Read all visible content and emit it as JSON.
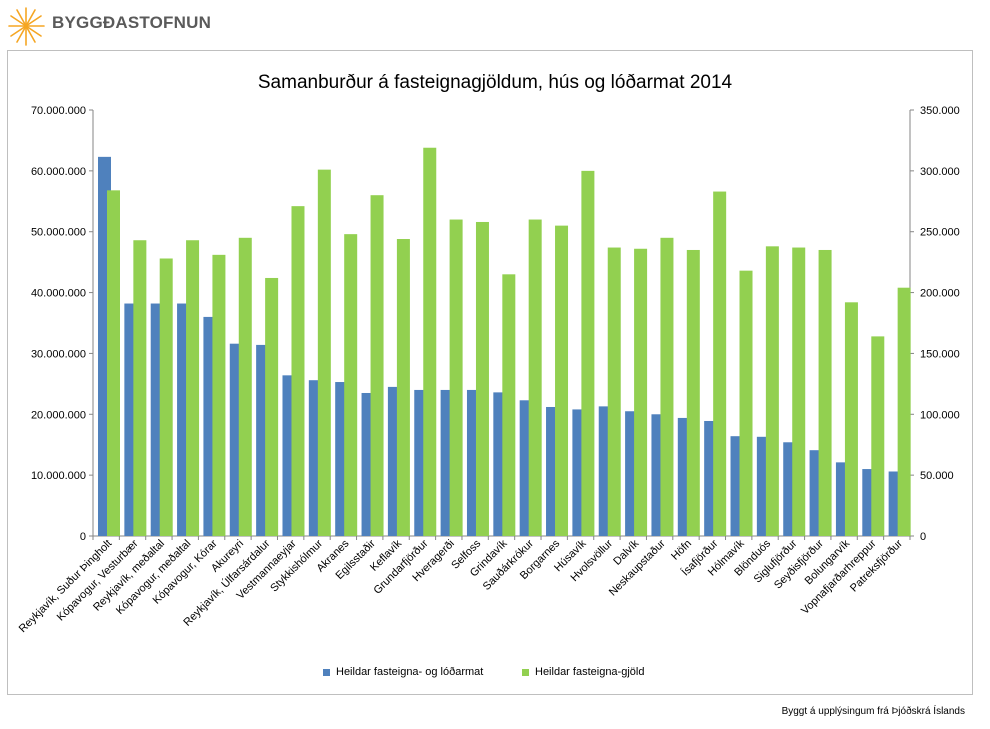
{
  "logo": {
    "text": "BYGGÐASTOFNUN",
    "color": "#f5a623"
  },
  "chart_data": {
    "type": "bar",
    "title": "Samanburður á fasteignagjöldum,  hús og lóðarmat 2014",
    "categories": [
      "Reykjavík, Suður Þingholt",
      "Kópavogur, Vesturbær",
      "Reykjavík, meðaltal",
      "Kópavogur, meðaltal",
      "Kópavogur, Kórar",
      "Akureyri",
      "Reykjavík, Úlfarsárdalur",
      "Vestmannaeyjar",
      "Stykkishólmur",
      "Akranes",
      "Egilsstaðir",
      "Keflavík",
      "Grundarfjörður",
      "Hveragerði",
      "Selfoss",
      "Grindavík",
      "Sauðárkrókur",
      "Borgarnes",
      "Húsavík",
      "Hvolsvöllur",
      "Dalvík",
      "Neskaupstaður",
      "Höfn",
      "Ísafjörður",
      "Hólmavík",
      "Blönduós",
      "Siglufjörður",
      "Seyðisfjörður",
      "Bolungarvík",
      "Vopnafjarðarhreppur",
      "Patreksfjörður"
    ],
    "series": [
      {
        "name": "Heildar fasteigna- og lóðarmat",
        "axis": "left",
        "color": "#4f81bd",
        "values": [
          62300000,
          38200000,
          38200000,
          38200000,
          36000000,
          31600000,
          31400000,
          26400000,
          25600000,
          25300000,
          23500000,
          24500000,
          24000000,
          24000000,
          24000000,
          23600000,
          22300000,
          21200000,
          20800000,
          21300000,
          20500000,
          20000000,
          19400000,
          18900000,
          16400000,
          16300000,
          15400000,
          14100000,
          12100000,
          11000000,
          10600000
        ]
      },
      {
        "name": "Heildar fasteigna-gjöld",
        "axis": "right",
        "color": "#92d050",
        "values": [
          284000,
          243000,
          228000,
          243000,
          231000,
          245000,
          212000,
          271000,
          301000,
          248000,
          280000,
          244000,
          319000,
          260000,
          258000,
          215000,
          260000,
          255000,
          300000,
          237000,
          236000,
          245000,
          235000,
          283000,
          218000,
          238000,
          237000,
          235000,
          192000,
          164000,
          204000
        ]
      }
    ],
    "y_left": {
      "min": 0,
      "max": 70000000,
      "step": 10000000,
      "tick_labels": [
        "0",
        "10.000.000",
        "20.000.000",
        "30.000.000",
        "40.000.000",
        "50.000.000",
        "60.000.000",
        "70.000.000"
      ]
    },
    "y_right": {
      "min": 0,
      "max": 350000,
      "step": 50000,
      "tick_labels": [
        "0",
        "50.000",
        "100.000",
        "150.000",
        "200.000",
        "250.000",
        "300.000",
        "350.000"
      ]
    },
    "grid": false,
    "legend": "bottom"
  },
  "footer": {
    "source": "Byggt á upplýsingum frá Þjóðskrá Íslands"
  }
}
